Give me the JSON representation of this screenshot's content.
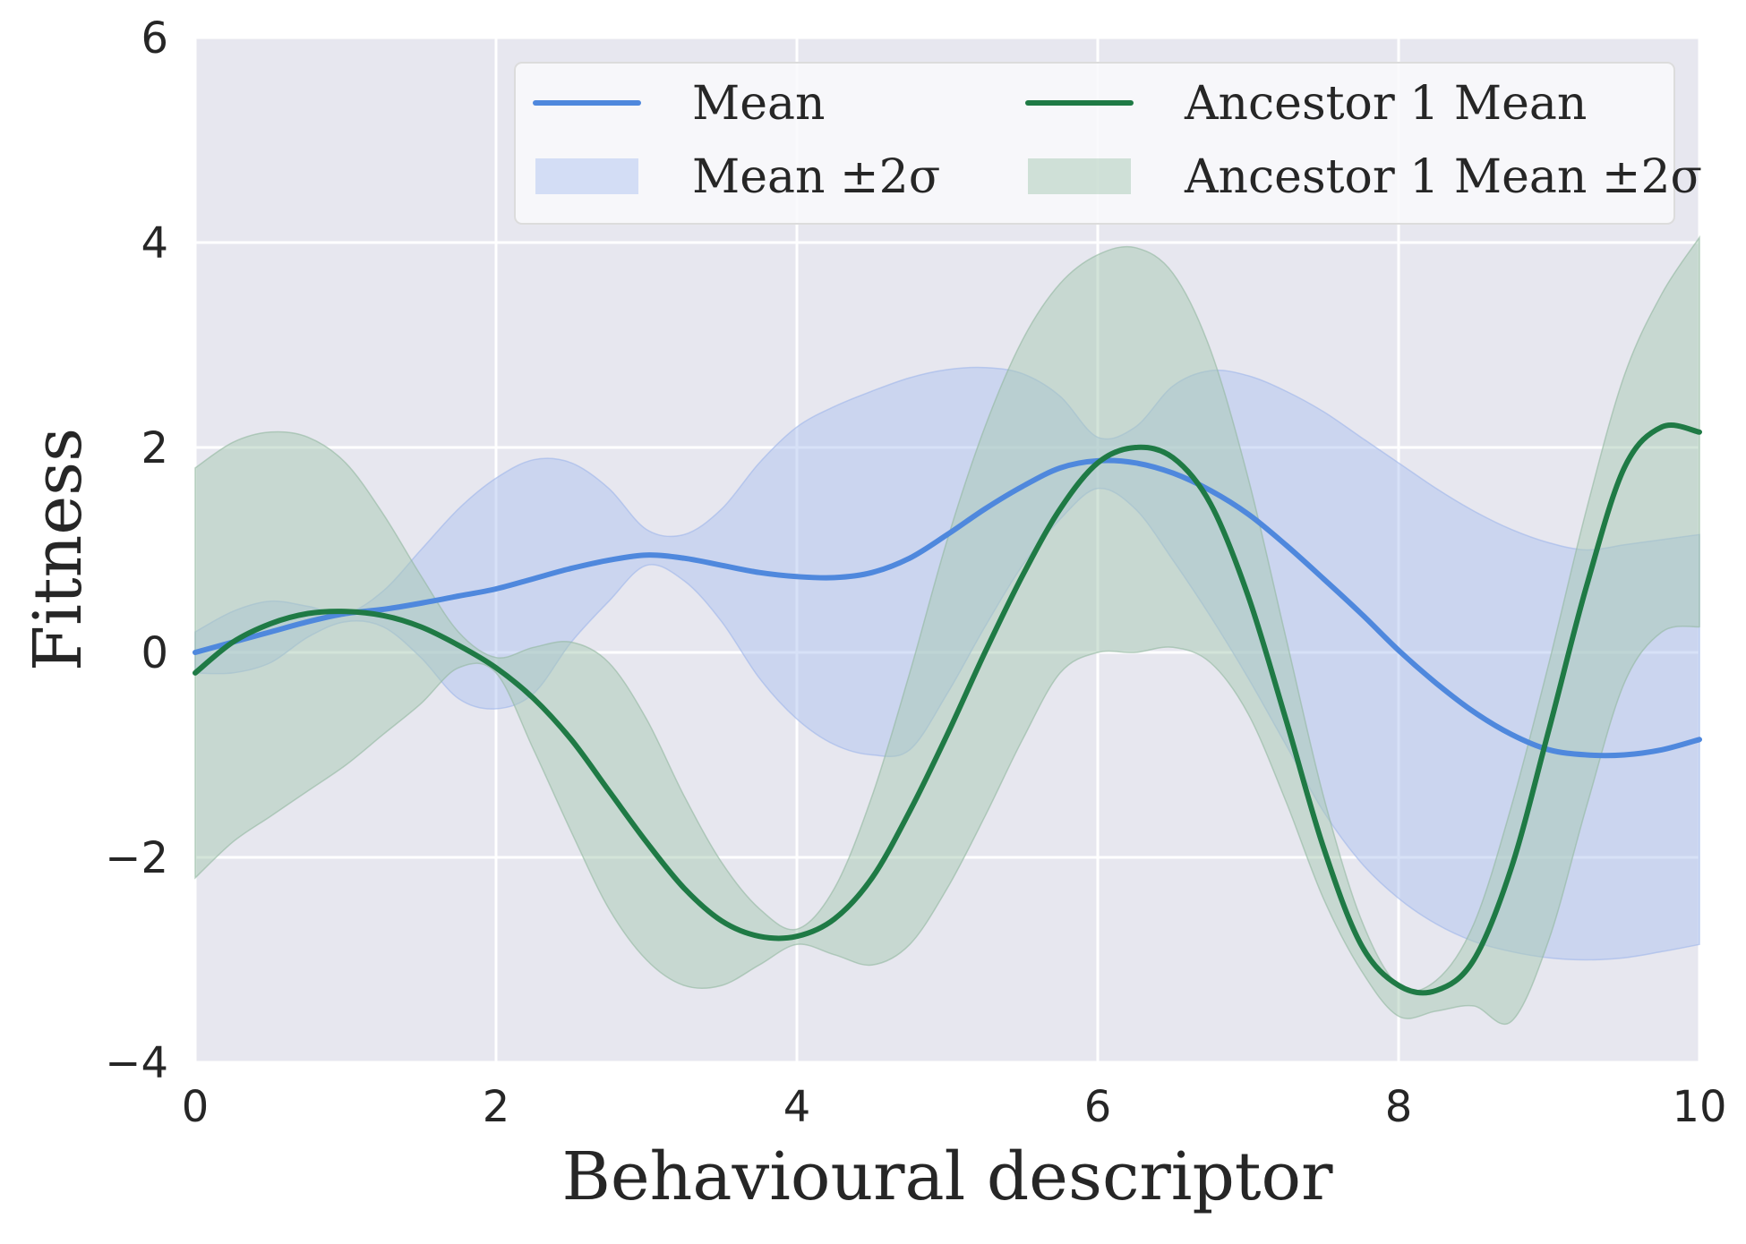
{
  "chart_data": {
    "type": "line",
    "title": "",
    "xlabel": "Behavioural descriptor",
    "ylabel": "Fitness",
    "xlim": [
      0,
      10
    ],
    "ylim": [
      -4,
      6
    ],
    "xticks": [
      0,
      2,
      4,
      6,
      8,
      10
    ],
    "xtick_labels": [
      "0",
      "2",
      "4",
      "6",
      "8",
      "10"
    ],
    "yticks": [
      -4,
      -2,
      0,
      2,
      4,
      6
    ],
    "ytick_labels": [
      "−4",
      "−2",
      "0",
      "2",
      "4",
      "6"
    ],
    "grid": true,
    "legend_position": "top-right",
    "legend": [
      {
        "label": "Mean",
        "kind": "line",
        "color": "#4f88dd"
      },
      {
        "label": "Ancestor 1 Mean",
        "kind": "line",
        "color": "#1f7a45"
      },
      {
        "label": "Mean ±2σ",
        "kind": "band",
        "color": "#b0c4f0"
      },
      {
        "label": "Ancestor 1 Mean ±2σ",
        "kind": "band",
        "color": "#a8c9b3"
      }
    ],
    "x": [
      0,
      0.25,
      0.5,
      0.75,
      1,
      1.25,
      1.5,
      1.75,
      2,
      2.25,
      2.5,
      2.75,
      3,
      3.25,
      3.5,
      3.75,
      4,
      4.25,
      4.5,
      4.75,
      5,
      5.25,
      5.5,
      5.75,
      6,
      6.25,
      6.5,
      6.75,
      7,
      7.25,
      7.5,
      7.75,
      8,
      8.25,
      8.5,
      8.75,
      9,
      9.25,
      9.5,
      9.75,
      10
    ],
    "series": [
      {
        "name": "Mean",
        "color": "#4f88dd",
        "values": [
          0.0,
          0.1,
          0.2,
          0.3,
          0.38,
          0.42,
          0.48,
          0.55,
          0.62,
          0.72,
          0.82,
          0.9,
          0.95,
          0.92,
          0.85,
          0.78,
          0.74,
          0.73,
          0.78,
          0.92,
          1.15,
          1.4,
          1.62,
          1.8,
          1.87,
          1.85,
          1.75,
          1.58,
          1.35,
          1.05,
          0.72,
          0.38,
          0.02,
          -0.3,
          -0.58,
          -0.8,
          -0.95,
          -1.0,
          -1.0,
          -0.95,
          -0.85
        ],
        "upper": [
          0.2,
          0.4,
          0.5,
          0.45,
          0.38,
          0.6,
          1.0,
          1.4,
          1.7,
          1.88,
          1.85,
          1.6,
          1.2,
          1.15,
          1.4,
          1.85,
          2.2,
          2.4,
          2.55,
          2.68,
          2.76,
          2.78,
          2.72,
          2.5,
          2.1,
          2.2,
          2.6,
          2.75,
          2.7,
          2.55,
          2.35,
          2.1,
          1.85,
          1.6,
          1.38,
          1.2,
          1.07,
          1.0,
          1.05,
          1.1,
          1.15
        ],
        "lower": [
          -0.2,
          -0.2,
          -0.1,
          0.15,
          0.3,
          0.25,
          -0.05,
          -0.45,
          -0.55,
          -0.4,
          0.1,
          0.5,
          0.85,
          0.7,
          0.3,
          -0.25,
          -0.65,
          -0.9,
          -1.0,
          -0.95,
          -0.4,
          0.25,
          0.85,
          1.3,
          1.6,
          1.4,
          0.9,
          0.35,
          -0.25,
          -0.9,
          -1.55,
          -2.05,
          -2.4,
          -2.65,
          -2.82,
          -2.92,
          -2.98,
          -3.0,
          -2.98,
          -2.92,
          -2.85
        ]
      },
      {
        "name": "Ancestor 1 Mean",
        "color": "#1f7a45",
        "values": [
          -0.2,
          0.1,
          0.28,
          0.38,
          0.4,
          0.36,
          0.25,
          0.07,
          -0.15,
          -0.45,
          -0.85,
          -1.35,
          -1.85,
          -2.3,
          -2.62,
          -2.77,
          -2.77,
          -2.6,
          -2.2,
          -1.55,
          -0.8,
          0.0,
          0.75,
          1.4,
          1.85,
          2.0,
          1.9,
          1.45,
          0.55,
          -0.65,
          -1.9,
          -2.85,
          -3.25,
          -3.3,
          -3.0,
          -2.1,
          -0.75,
          0.65,
          1.8,
          2.2,
          2.15
        ],
        "upper": [
          1.8,
          2.05,
          2.15,
          2.1,
          1.85,
          1.35,
          0.75,
          0.2,
          -0.05,
          0.05,
          0.1,
          -0.1,
          -0.65,
          -1.4,
          -2.05,
          -2.5,
          -2.7,
          -2.3,
          -1.4,
          -0.2,
          1.1,
          2.2,
          3.05,
          3.6,
          3.88,
          3.95,
          3.7,
          2.95,
          1.7,
          0.15,
          -1.4,
          -2.6,
          -3.25,
          -3.2,
          -2.65,
          -1.5,
          -0.1,
          1.4,
          2.7,
          3.5,
          4.05
        ],
        "lower": [
          -2.2,
          -1.85,
          -1.6,
          -1.35,
          -1.1,
          -0.8,
          -0.5,
          -0.15,
          -0.2,
          -0.95,
          -1.75,
          -2.5,
          -3.0,
          -3.25,
          -3.25,
          -3.05,
          -2.85,
          -2.95,
          -3.05,
          -2.85,
          -2.3,
          -1.6,
          -0.85,
          -0.2,
          0.0,
          0.0,
          0.05,
          -0.1,
          -0.6,
          -1.45,
          -2.4,
          -3.1,
          -3.55,
          -3.5,
          -3.45,
          -3.6,
          -2.8,
          -1.5,
          -0.3,
          0.2,
          0.25
        ]
      }
    ]
  }
}
